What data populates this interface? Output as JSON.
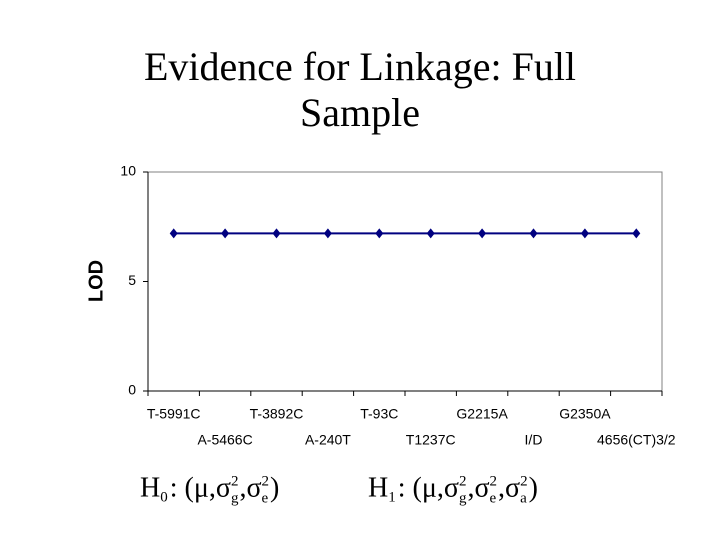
{
  "chart_data": {
    "type": "line",
    "title": "Evidence for Linkage: Full Sample",
    "y_label": "LOD",
    "categories": [
      "T-5991C",
      "A-5466C",
      "T-3892C",
      "A-240T",
      "T-93C",
      "T1237C",
      "G2215A",
      "I/D",
      "G2350A",
      "4656(CT)3/2"
    ],
    "series": [
      {
        "name": "LOD",
        "color": "#000080",
        "values": [
          7.2,
          7.2,
          7.2,
          7.2,
          7.2,
          7.2,
          7.2,
          7.2,
          7.2,
          7.2
        ]
      }
    ],
    "ylim": [
      0,
      10
    ],
    "yticks": [
      0,
      5,
      10
    ],
    "grid": false
  },
  "hypotheses": [
    {
      "symbol": "H",
      "sub": "0",
      "open": ": (",
      "sep": ",",
      "close": ")",
      "params": [
        {
          "symbol": "μ"
        },
        {
          "symbol": "σ",
          "sup": "2",
          "sub": "g"
        },
        {
          "symbol": "σ",
          "sup": "2",
          "sub": "e"
        }
      ]
    },
    {
      "symbol": "H",
      "sub": "1",
      "open": ": (",
      "sep": ",",
      "close": ")",
      "params": [
        {
          "symbol": "μ"
        },
        {
          "symbol": "σ",
          "sup": "2",
          "sub": "g"
        },
        {
          "symbol": "σ",
          "sup": "2",
          "sub": "e"
        },
        {
          "symbol": "σ",
          "sup": "2",
          "sub": "a"
        }
      ]
    }
  ]
}
